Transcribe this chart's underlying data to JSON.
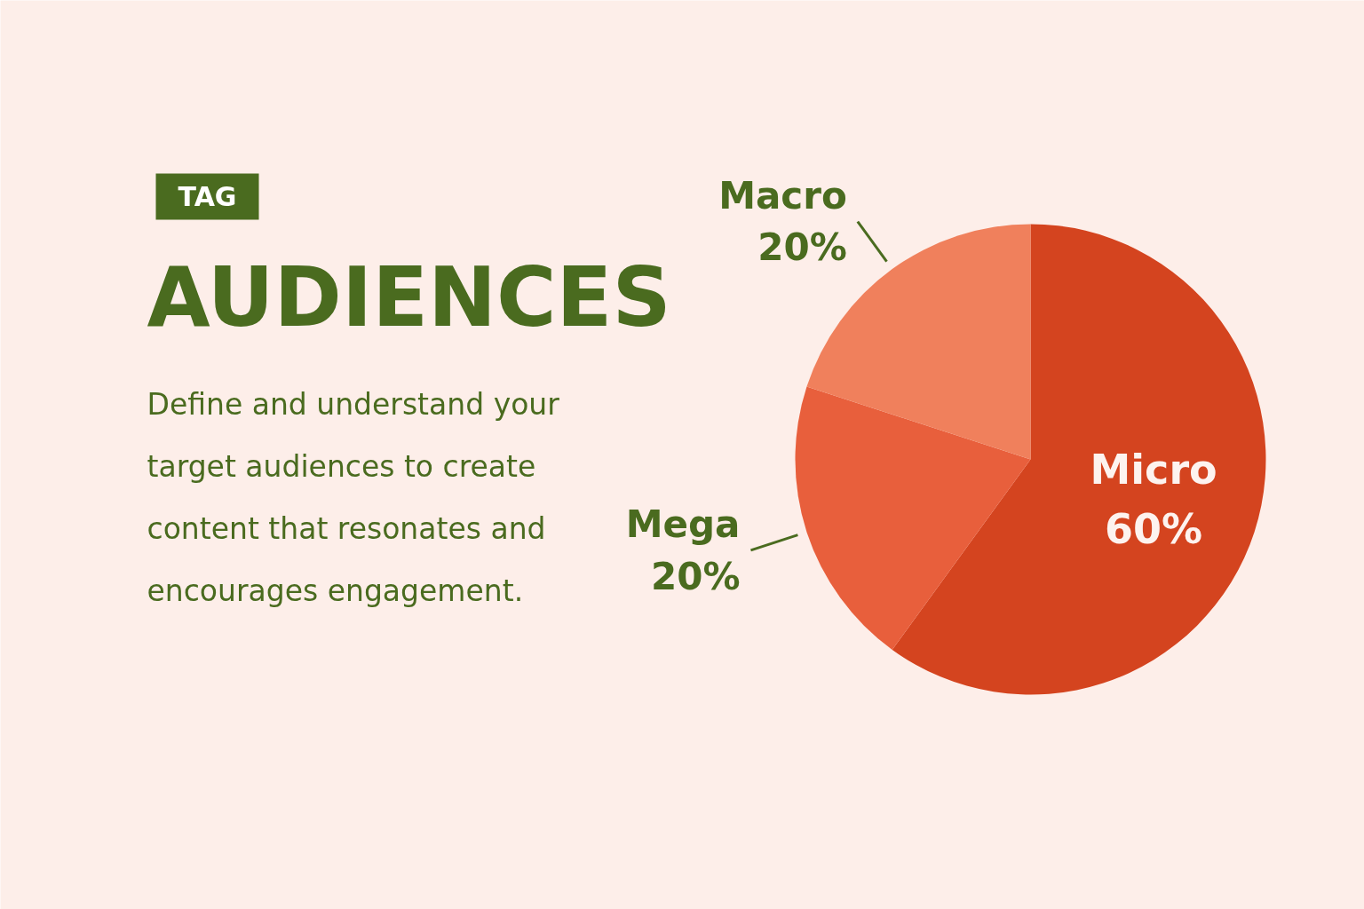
{
  "chart_data": {
    "type": "pie",
    "title": "AUDIENCES",
    "subtitle": "Define and understand your\ntarget audiences to create\ncontent that resonates and\nencourages engagement.",
    "annotations": [
      "TAG"
    ],
    "categories": [
      "Micro",
      "Mega",
      "Macro"
    ],
    "values": [
      60,
      20,
      20
    ],
    "value_labels": [
      "60%",
      "20%",
      "20%"
    ],
    "colors": [
      "#d4441f",
      "#e85f3c",
      "#f0805c"
    ]
  }
}
